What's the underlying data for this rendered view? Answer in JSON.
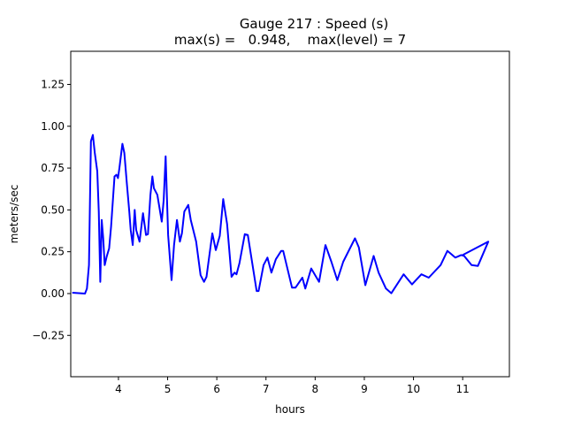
{
  "chart_data": {
    "type": "line",
    "title": "Gauge 217 : Speed (s)",
    "subtitle": "max(s) =   0.948,    max(level) = 7",
    "xlabel": "hours",
    "ylabel": "meters/sec",
    "xlim": [
      3.03,
      11.95
    ],
    "ylim": [
      -0.497,
      1.448
    ],
    "xticks": [
      4,
      5,
      6,
      7,
      8,
      9,
      10,
      11
    ],
    "yticks": [
      -0.25,
      0.0,
      0.25,
      0.5,
      0.75,
      1.0,
      1.25
    ],
    "grid": false,
    "series": [
      {
        "color": "#0000ff",
        "x": [
          3.06,
          3.32,
          3.36,
          3.4,
          3.44,
          3.48,
          3.52,
          3.57,
          3.6,
          3.63,
          3.66,
          3.69,
          3.72,
          3.76,
          3.81,
          3.85,
          3.92,
          3.96,
          3.99,
          4.02,
          4.08,
          4.12,
          4.17,
          4.22,
          4.25,
          4.29,
          4.33,
          4.36,
          4.43,
          4.5,
          4.56,
          4.6,
          4.65,
          4.69,
          4.72,
          4.79,
          4.88,
          4.92,
          4.96,
          5.01,
          5.08,
          5.13,
          5.19,
          5.25,
          5.29,
          5.34,
          5.42,
          5.47,
          5.58,
          5.67,
          5.74,
          5.79,
          5.91,
          5.98,
          6.06,
          6.13,
          6.21,
          6.3,
          6.36,
          6.4,
          6.46,
          6.57,
          6.63,
          6.81,
          6.85,
          6.95,
          7.03,
          7.11,
          7.2,
          7.31,
          7.35,
          7.53,
          7.6,
          7.74,
          7.8,
          7.92,
          8.08,
          8.21,
          8.33,
          8.45,
          8.57,
          8.81,
          8.89,
          9.02,
          9.19,
          9.29,
          9.44,
          9.55,
          9.8,
          9.97,
          10.16,
          10.31,
          10.55,
          10.69,
          10.85,
          10.97,
          11.03,
          11.18,
          11.31,
          11.52,
          11.0
        ],
        "y": [
          0.005,
          0.0,
          0.03,
          0.17,
          0.91,
          0.948,
          0.84,
          0.73,
          0.49,
          0.07,
          0.44,
          0.33,
          0.17,
          0.22,
          0.27,
          0.4,
          0.7,
          0.71,
          0.69,
          0.75,
          0.895,
          0.84,
          0.66,
          0.49,
          0.38,
          0.29,
          0.5,
          0.38,
          0.31,
          0.48,
          0.35,
          0.355,
          0.59,
          0.7,
          0.63,
          0.59,
          0.43,
          0.56,
          0.82,
          0.35,
          0.08,
          0.29,
          0.44,
          0.31,
          0.36,
          0.49,
          0.53,
          0.44,
          0.31,
          0.11,
          0.07,
          0.1,
          0.36,
          0.26,
          0.345,
          0.565,
          0.415,
          0.1,
          0.125,
          0.115,
          0.18,
          0.355,
          0.35,
          0.015,
          0.015,
          0.17,
          0.215,
          0.125,
          0.205,
          0.255,
          0.255,
          0.035,
          0.035,
          0.095,
          0.03,
          0.15,
          0.07,
          0.29,
          0.19,
          0.08,
          0.19,
          0.33,
          0.275,
          0.05,
          0.225,
          0.125,
          0.03,
          0.002,
          0.115,
          0.055,
          0.115,
          0.095,
          0.17,
          0.255,
          0.215,
          0.23,
          0.225,
          0.17,
          0.165,
          0.31,
          0.23
        ]
      }
    ]
  }
}
